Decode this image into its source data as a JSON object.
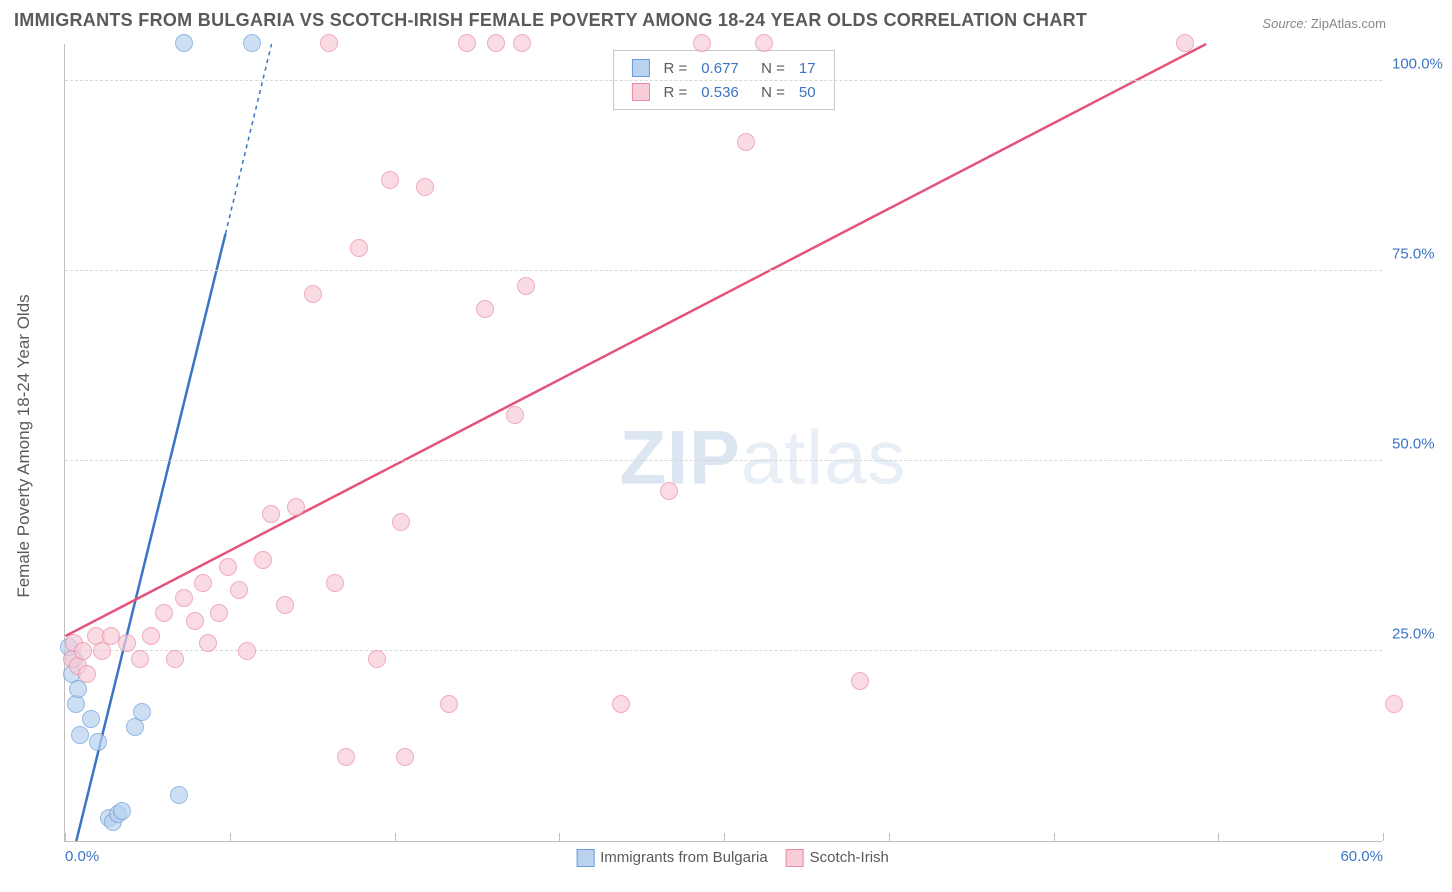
{
  "title": "IMMIGRANTS FROM BULGARIA VS SCOTCH-IRISH FEMALE POVERTY AMONG 18-24 YEAR OLDS CORRELATION CHART",
  "source_label": "Source:",
  "source_value": "ZipAtlas.com",
  "watermark_a": "ZIP",
  "watermark_b": "atlas",
  "chart": {
    "type": "scatter",
    "background_color": "#ffffff",
    "grid_color": "#d8d8d8",
    "axis_color": "#bfbfbf",
    "tick_color": "#3b74c4",
    "label_color": "#5a5a5a",
    "title_fontsize": 18,
    "label_fontsize": 17,
    "tick_fontsize": 15,
    "xlim": [
      0,
      60
    ],
    "ylim": [
      0,
      105
    ],
    "xticks": [
      {
        "v": 0,
        "l": "0.0%"
      },
      {
        "v": 60,
        "l": "60.0%"
      }
    ],
    "yticks": [
      {
        "v": 25,
        "l": "25.0%"
      },
      {
        "v": 50,
        "l": "50.0%"
      },
      {
        "v": 75,
        "l": "75.0%"
      },
      {
        "v": 100,
        "l": "100.0%"
      }
    ],
    "xtick_marks": [
      0,
      7.5,
      15,
      22.5,
      30,
      37.5,
      45,
      52.5,
      60
    ],
    "ylabel": "Female Poverty Among 18-24 Year Olds",
    "marker_radius": 9,
    "marker_opacity": 0.45,
    "line_width": 2.5,
    "series": [
      {
        "name": "Immigrants from Bulgaria",
        "color": "#3b74c4",
        "fill": "#b9d2ef",
        "stroke": "#6a9cd8",
        "R": "0.677",
        "N": "17",
        "trend": {
          "x1": 0.5,
          "y1": 0,
          "x2": 7.3,
          "y2": 80,
          "dash_x2": 9.4,
          "dash_y2": 105
        },
        "points": [
          {
            "x": 0.3,
            "y": 22
          },
          {
            "x": 0.4,
            "y": 24
          },
          {
            "x": 0.5,
            "y": 18
          },
          {
            "x": 0.6,
            "y": 20
          },
          {
            "x": 0.7,
            "y": 14
          },
          {
            "x": 1.2,
            "y": 16
          },
          {
            "x": 1.5,
            "y": 13
          },
          {
            "x": 2.0,
            "y": 3
          },
          {
            "x": 2.2,
            "y": 2.5
          },
          {
            "x": 2.4,
            "y": 3.5
          },
          {
            "x": 2.6,
            "y": 4
          },
          {
            "x": 3.2,
            "y": 15
          },
          {
            "x": 3.5,
            "y": 17
          },
          {
            "x": 5.2,
            "y": 6
          },
          {
            "x": 5.4,
            "y": 105
          },
          {
            "x": 8.5,
            "y": 105
          },
          {
            "x": 0.2,
            "y": 25.5
          }
        ]
      },
      {
        "name": "Scotch-Irish",
        "color": "#e6537a",
        "fill": "#f7cdd8",
        "stroke": "#ec89a3",
        "R": "0.536",
        "N": "50",
        "trend": {
          "x1": 0,
          "y1": 27,
          "x2": 52,
          "y2": 105
        },
        "points": [
          {
            "x": 0.3,
            "y": 24
          },
          {
            "x": 0.4,
            "y": 26
          },
          {
            "x": 0.6,
            "y": 23
          },
          {
            "x": 0.8,
            "y": 25
          },
          {
            "x": 1.0,
            "y": 22
          },
          {
            "x": 1.4,
            "y": 27
          },
          {
            "x": 1.7,
            "y": 25
          },
          {
            "x": 2.1,
            "y": 27
          },
          {
            "x": 2.8,
            "y": 26
          },
          {
            "x": 3.4,
            "y": 24
          },
          {
            "x": 3.9,
            "y": 27
          },
          {
            "x": 4.5,
            "y": 30
          },
          {
            "x": 5.0,
            "y": 24
          },
          {
            "x": 5.4,
            "y": 32
          },
          {
            "x": 5.9,
            "y": 29
          },
          {
            "x": 6.3,
            "y": 34
          },
          {
            "x": 6.5,
            "y": 26
          },
          {
            "x": 7.0,
            "y": 30
          },
          {
            "x": 7.4,
            "y": 36
          },
          {
            "x": 7.9,
            "y": 33
          },
          {
            "x": 8.3,
            "y": 25
          },
          {
            "x": 9.0,
            "y": 37
          },
          {
            "x": 9.4,
            "y": 43
          },
          {
            "x": 10.0,
            "y": 31
          },
          {
            "x": 10.5,
            "y": 44
          },
          {
            "x": 11.3,
            "y": 72
          },
          {
            "x": 12.0,
            "y": 105
          },
          {
            "x": 12.3,
            "y": 34
          },
          {
            "x": 12.8,
            "y": 11
          },
          {
            "x": 13.4,
            "y": 78
          },
          {
            "x": 14.2,
            "y": 24
          },
          {
            "x": 14.8,
            "y": 87
          },
          {
            "x": 15.3,
            "y": 42
          },
          {
            "x": 15.5,
            "y": 11
          },
          {
            "x": 16.4,
            "y": 86
          },
          {
            "x": 17.5,
            "y": 18
          },
          {
            "x": 18.3,
            "y": 105
          },
          {
            "x": 19.1,
            "y": 70
          },
          {
            "x": 19.6,
            "y": 105
          },
          {
            "x": 20.5,
            "y": 56
          },
          {
            "x": 20.8,
            "y": 105
          },
          {
            "x": 21.0,
            "y": 73
          },
          {
            "x": 25.3,
            "y": 18
          },
          {
            "x": 27.5,
            "y": 46
          },
          {
            "x": 29.0,
            "y": 105
          },
          {
            "x": 31.0,
            "y": 92
          },
          {
            "x": 31.8,
            "y": 105
          },
          {
            "x": 36.2,
            "y": 21
          },
          {
            "x": 51.0,
            "y": 105
          },
          {
            "x": 60.5,
            "y": 18
          }
        ]
      }
    ],
    "bottom_legend": [
      {
        "label": "Immigrants from Bulgaria",
        "fill": "#b9d2ef",
        "stroke": "#6a9cd8"
      },
      {
        "label": "Scotch-Irish",
        "fill": "#f7cdd8",
        "stroke": "#ec89a3"
      }
    ]
  }
}
